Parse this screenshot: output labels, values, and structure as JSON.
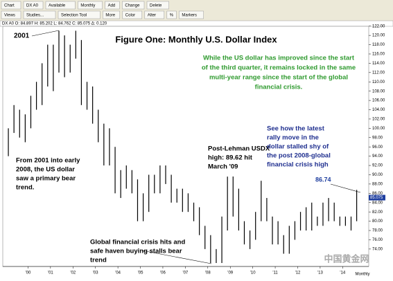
{
  "toolbar": {
    "row1": [
      "Chart",
      "DX A0",
      "Available",
      "Monthly",
      "Add",
      "Change",
      "Delete"
    ],
    "row2": [
      "Views",
      "Studies...",
      "Selection Tool",
      "More",
      "Color",
      "Alter",
      "%",
      "Markers"
    ]
  },
  "quote_line": "DX A0  O: 84.897  H: 85.202  L: 84.762  C: 85.075  Δ: 0.120",
  "watermark": "中国黄金网",
  "chart_data": {
    "type": "ohlc",
    "title": "Figure One: Monthly U.S. Dollar Index",
    "annotations": {
      "year_label": "2001",
      "green": [
        "While the US dollar has improved since the start",
        "of the third quarter, it remains locked in the same",
        "multi-year range since the start of the global",
        "financial crisis."
      ],
      "bear": [
        "From 2001 into early",
        "2008, the US dollar",
        "saw a primary bear",
        "trend."
      ],
      "lehman": [
        "Post-Lehman USDX",
        "high: 89.62 hit",
        "March '09"
      ],
      "crisis": [
        "Global financial crisis hits and",
        "safe haven buying stalls bear",
        "trend"
      ],
      "rally": [
        "See how the latest",
        "rally move in the",
        "dollar stalled shy of",
        "the post 2008-global",
        "financial crisis high"
      ],
      "peak": "86.74"
    },
    "last_price": 85.075,
    "period_label": "Monthly",
    "color": "#000000",
    "x": [
      1999.125,
      1999.375,
      1999.625,
      1999.875,
      2000.125,
      2000.375,
      2000.625,
      2000.875,
      2001.125,
      2001.375,
      2001.625,
      2001.875,
      2002.125,
      2002.375,
      2002.625,
      2002.875,
      2003.125,
      2003.375,
      2003.625,
      2003.875,
      2004.125,
      2004.375,
      2004.625,
      2004.875,
      2005.125,
      2005.375,
      2005.625,
      2005.875,
      2006.125,
      2006.375,
      2006.625,
      2006.875,
      2007.125,
      2007.375,
      2007.625,
      2007.875,
      2008.125,
      2008.375,
      2008.625,
      2008.875,
      2009.125,
      2009.375,
      2009.625,
      2009.875,
      2010.125,
      2010.375,
      2010.625,
      2010.875,
      2011.125,
      2011.375,
      2011.625,
      2011.875,
      2012.125,
      2012.375,
      2012.625,
      2012.875,
      2013.125,
      2013.375,
      2013.625,
      2013.875,
      2014.125,
      2014.375,
      2014.625
    ],
    "high": [
      100,
      105,
      104,
      103,
      107,
      110,
      114,
      118,
      118,
      121,
      120,
      118,
      121,
      119,
      110,
      109,
      104,
      101,
      100,
      96,
      91,
      92,
      91,
      89,
      86,
      90,
      90,
      92,
      92,
      90,
      87,
      87,
      86,
      84,
      83,
      79,
      77,
      74,
      81,
      89.6,
      89.62,
      87,
      80,
      78,
      82,
      88.7,
      85,
      81,
      80,
      77,
      79,
      80,
      82,
      83,
      84,
      81,
      84,
      85,
      84,
      81,
      81,
      81,
      86.74
    ],
    "low": [
      94,
      99,
      98,
      97,
      100,
      104,
      105,
      109,
      108,
      112,
      111,
      112,
      115,
      105,
      104,
      101,
      97,
      92,
      92,
      86,
      85,
      87,
      86,
      80,
      80,
      82,
      86,
      86,
      88,
      84,
      84,
      82,
      82,
      80,
      77,
      74,
      71,
      71,
      71,
      78,
      81,
      78,
      75,
      74,
      76,
      80,
      80,
      75,
      75,
      73,
      73,
      76,
      78,
      78,
      78,
      79,
      79,
      80,
      80,
      79,
      79,
      78,
      80
    ],
    "xlim": [
      1999.0,
      2015.1
    ],
    "xticks": [
      {
        "value": 2000,
        "label": "'00"
      },
      {
        "value": 2001,
        "label": "'01"
      },
      {
        "value": 2002,
        "label": "'02"
      },
      {
        "value": 2003,
        "label": "'03"
      },
      {
        "value": 2004,
        "label": "'04"
      },
      {
        "value": 2005,
        "label": "'05"
      },
      {
        "value": 2006,
        "label": "'06"
      },
      {
        "value": 2007,
        "label": "'07"
      },
      {
        "value": 2008,
        "label": "'08"
      },
      {
        "value": 2009,
        "label": "'09"
      },
      {
        "value": 2010,
        "label": "'10"
      },
      {
        "value": 2011,
        "label": "'11"
      },
      {
        "value": 2012,
        "label": "'12"
      },
      {
        "value": 2013,
        "label": "'13"
      },
      {
        "value": 2014,
        "label": "'14"
      }
    ],
    "ylim": [
      71,
      123
    ],
    "yticks": [
      {
        "value": 74,
        "label": "74.00"
      },
      {
        "value": 76,
        "label": "76.00"
      },
      {
        "value": 78,
        "label": "78.00"
      },
      {
        "value": 80,
        "label": "80.00"
      },
      {
        "value": 82,
        "label": "82.00"
      },
      {
        "value": 84,
        "label": "84.00"
      },
      {
        "value": 86,
        "label": "86.00"
      },
      {
        "value": 88,
        "label": "88.00"
      },
      {
        "value": 90,
        "label": "90.00"
      },
      {
        "value": 92,
        "label": "92.00"
      },
      {
        "value": 94,
        "label": "94.00"
      },
      {
        "value": 96,
        "label": "96.00"
      },
      {
        "value": 98,
        "label": "98.00"
      },
      {
        "value": 100,
        "label": "100.00"
      },
      {
        "value": 102,
        "label": "102.00"
      },
      {
        "value": 104,
        "label": "104.00"
      },
      {
        "value": 106,
        "label": "106.00"
      },
      {
        "value": 108,
        "label": "108.00"
      },
      {
        "value": 110,
        "label": "110.00"
      },
      {
        "value": 112,
        "label": "112.00"
      },
      {
        "value": 114,
        "label": "114.00"
      },
      {
        "value": 116,
        "label": "116.00"
      },
      {
        "value": 118,
        "label": "118.00"
      },
      {
        "value": 120,
        "label": "120.00"
      },
      {
        "value": 122,
        "label": "122.00"
      }
    ]
  }
}
